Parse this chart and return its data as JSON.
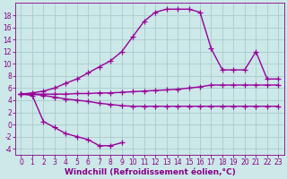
{
  "bg_color": "#cce8e8",
  "grid_color": "#aacccc",
  "line_color": "#990099",
  "line_width": 1.0,
  "marker": "+",
  "markersize": 4,
  "markeredgewidth": 0.9,
  "xlabel": "Windchill (Refroidissement éolien,°C)",
  "xlabel_color": "#880088",
  "xlabel_fontsize": 6.5,
  "tick_color": "#880088",
  "tick_fontsize": 5.5,
  "xlim": [
    -0.5,
    23.5
  ],
  "ylim": [
    -5.0,
    20.0
  ],
  "yticks": [
    -4,
    -2,
    0,
    2,
    4,
    6,
    8,
    10,
    12,
    14,
    16,
    18
  ],
  "xticks": [
    0,
    1,
    2,
    3,
    4,
    5,
    6,
    7,
    8,
    9,
    10,
    11,
    12,
    13,
    14,
    15,
    16,
    17,
    18,
    19,
    20,
    21,
    22,
    23
  ],
  "curve1_x": [
    0,
    1,
    2,
    3,
    4,
    5,
    6,
    7,
    8,
    9,
    10,
    11,
    12,
    13,
    14,
    15,
    16,
    17,
    18,
    19,
    20,
    21,
    22,
    23
  ],
  "curve1_y": [
    5.0,
    5.2,
    5.5,
    6.0,
    6.8,
    7.5,
    8.5,
    9.5,
    10.5,
    12.0,
    14.5,
    17.0,
    18.5,
    19.0,
    19.0,
    19.0,
    18.5,
    12.5,
    9.0,
    9.0,
    9.0,
    12.0,
    7.5,
    7.5
  ],
  "curve2_x": [
    0,
    1,
    2,
    3,
    4,
    5,
    6,
    7,
    8,
    9
  ],
  "curve2_y": [
    5.0,
    4.8,
    0.5,
    -0.5,
    -1.5,
    -2.0,
    -2.5,
    -3.5,
    -3.5,
    -3.0
  ],
  "curve3_x": [
    0,
    1,
    2,
    3,
    4,
    5,
    6,
    7,
    8,
    9,
    10,
    11,
    12,
    13,
    14,
    15,
    16,
    17,
    18,
    19,
    20,
    21,
    22,
    23
  ],
  "curve3_y": [
    5.0,
    5.0,
    5.0,
    5.0,
    5.0,
    5.1,
    5.1,
    5.2,
    5.2,
    5.3,
    5.4,
    5.5,
    5.6,
    5.7,
    5.8,
    6.0,
    6.2,
    6.5,
    6.5,
    6.5,
    6.5,
    6.5,
    6.5,
    6.5
  ],
  "curve4_x": [
    0,
    1,
    2,
    3,
    4,
    5,
    6,
    7,
    8,
    9,
    10,
    11,
    12,
    13,
    14,
    15,
    16,
    17,
    18,
    19,
    20,
    21,
    22,
    23
  ],
  "curve4_y": [
    5.0,
    5.0,
    4.8,
    4.5,
    4.2,
    4.0,
    3.8,
    3.5,
    3.3,
    3.1,
    3.0,
    3.0,
    3.0,
    3.0,
    3.0,
    3.0,
    3.0,
    3.0,
    3.0,
    3.0,
    3.0,
    3.0,
    3.0,
    3.0
  ]
}
